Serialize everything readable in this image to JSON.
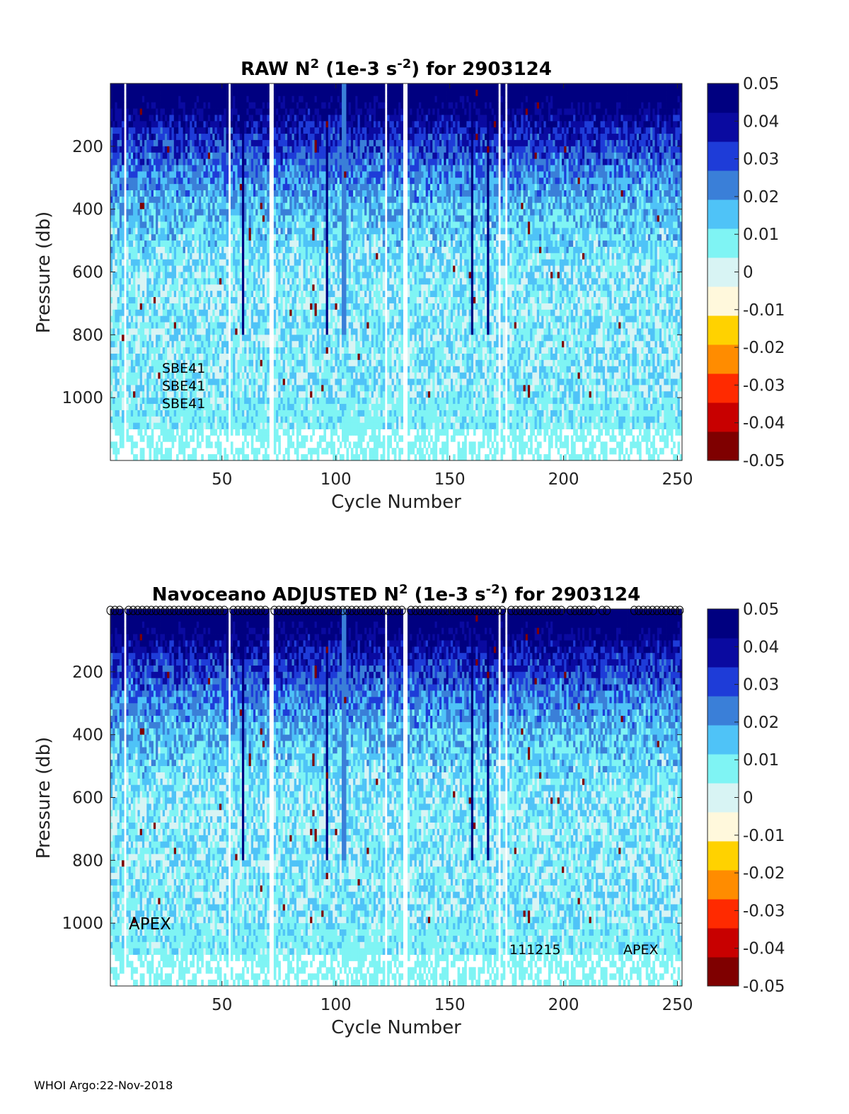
{
  "colormap": [
    "#7f0000",
    "#c80000",
    "#ff2a00",
    "#ff8c00",
    "#ffd200",
    "#fff8dc",
    "#d8f4f4",
    "#7ff4f4",
    "#4fc3f7",
    "#3a7fd8",
    "#1e3cd8",
    "#0a0aa0",
    "#000080"
  ],
  "footer": "WHOI Argo:22-Nov-2018",
  "chart_data": [
    {
      "type": "heatmap",
      "title_pre": "RAW N",
      "title_sup1": "2",
      "title_mid": " (1e-3 s",
      "title_sup2": "-2",
      "title_post": ") for 2903124",
      "xlabel": "Cycle Number",
      "ylabel": "Pressure (db)",
      "xlim": [
        1,
        252
      ],
      "ylim": [
        0,
        1200
      ],
      "xticks": [
        "50",
        "100",
        "150",
        "200",
        "250"
      ],
      "xtick_values": [
        50,
        100,
        150,
        200,
        250
      ],
      "yticks": [
        "200",
        "400",
        "600",
        "800",
        "1000"
      ],
      "ytick_values": [
        200,
        400,
        600,
        800,
        1000
      ],
      "clim": [
        -0.05,
        0.05
      ],
      "colorbar_ticks": [
        "0.05",
        "0.04",
        "0.03",
        "0.02",
        "0.01",
        "0",
        "-0.01",
        "-0.02",
        "-0.03",
        "-0.04",
        "-0.05"
      ],
      "annotations": [
        "SBE41",
        "SBE41",
        "SBE41"
      ]
    },
    {
      "type": "heatmap",
      "title_pre": "Navoceano  ADJUSTED N",
      "title_sup1": "2",
      "title_mid": " (1e-3 s",
      "title_sup2": "-2",
      "title_post": ") for 2903124",
      "xlabel": "Cycle Number",
      "ylabel": "Pressure (db)",
      "xlim": [
        1,
        252
      ],
      "ylim": [
        0,
        1200
      ],
      "xticks": [
        "50",
        "100",
        "150",
        "200",
        "250"
      ],
      "xtick_values": [
        50,
        100,
        150,
        200,
        250
      ],
      "yticks": [
        "200",
        "400",
        "600",
        "800",
        "1000"
      ],
      "ytick_values": [
        200,
        400,
        600,
        800,
        1000
      ],
      "clim": [
        -0.05,
        0.05
      ],
      "colorbar_ticks": [
        "0.05",
        "0.04",
        "0.03",
        "0.02",
        "0.01",
        "0",
        "-0.01",
        "-0.02",
        "-0.03",
        "-0.04",
        "-0.05"
      ],
      "annotations": [
        "APEX",
        "111215",
        "APEX"
      ],
      "qc_marker_rows": "profile QC markers along top edge"
    }
  ]
}
